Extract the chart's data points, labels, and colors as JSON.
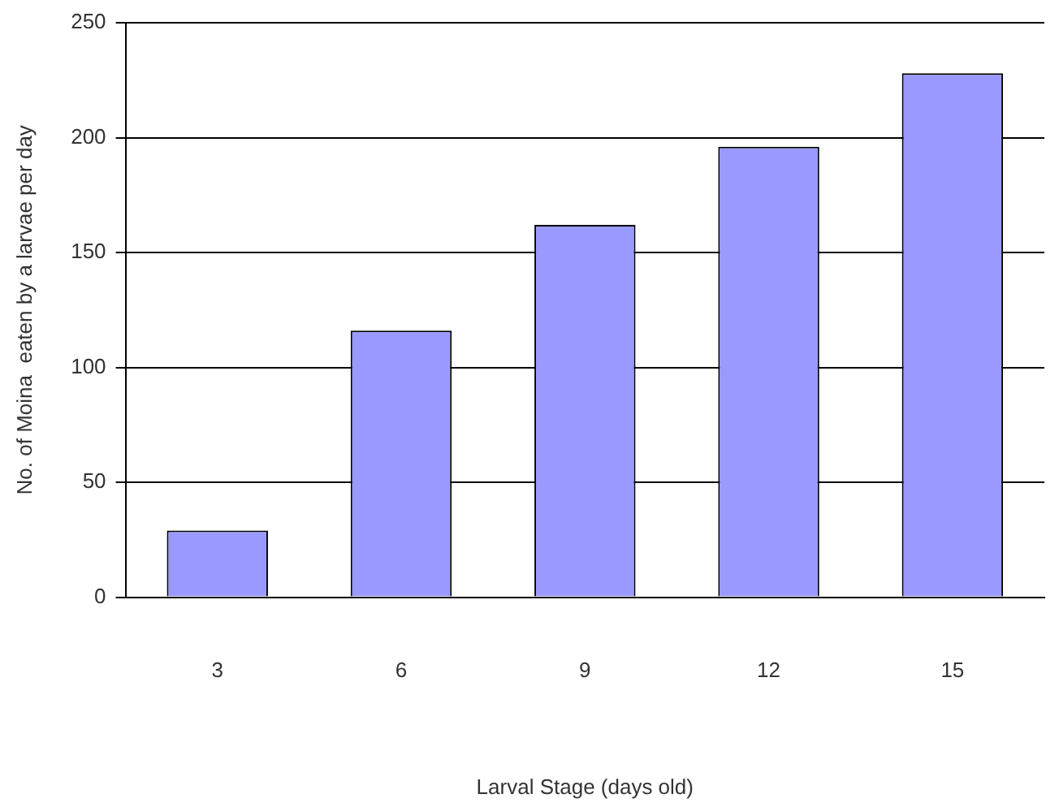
{
  "chart_data": {
    "type": "bar",
    "xlabel": "Larval Stage (days old)",
    "ylabel": "No. of Moina  eaten by a larvae per day",
    "categories": [
      "3",
      "6",
      "9",
      "12",
      "15"
    ],
    "values": [
      29,
      116,
      162,
      196,
      228
    ],
    "color": "#9999ff",
    "ylim": [
      0,
      250
    ],
    "yticks": [
      0,
      50,
      100,
      150,
      200,
      250
    ],
    "grid": "y",
    "legend": false
  }
}
